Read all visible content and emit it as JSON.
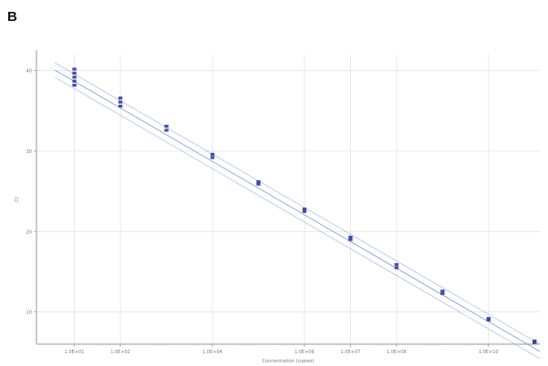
{
  "panel_label": "B",
  "chart_data": {
    "type": "scatter",
    "title": "",
    "xlabel": "Concentration (copies)",
    "ylabel": "Ct",
    "xscale": "log",
    "xlim": [
      1.5,
      130000000000.0
    ],
    "ylim": [
      6,
      42
    ],
    "x_ticks": [
      10,
      100,
      10000,
      1000000,
      10000000,
      100000000,
      10000000000
    ],
    "x_tick_labels": [
      "1.0E+01",
      "1.0E+02",
      "1.0E+04",
      "1.0E+06",
      "1.0E+07",
      "1.0E+08",
      "1.0E+10"
    ],
    "y_ticks": [
      10,
      20,
      30,
      40
    ],
    "y_tick_labels": [
      "10",
      "20",
      "30",
      "40"
    ],
    "grid": true,
    "legend": "none",
    "point_color": "#2e3e9e",
    "line_color": "#8fa2d8",
    "standard_curve": {
      "slope": -3.32,
      "intercept": 42.0
    },
    "confidence_band_offset": 0.9,
    "points": [
      {
        "x": 10,
        "y": 40.2
      },
      {
        "x": 10,
        "y": 39.7
      },
      {
        "x": 10,
        "y": 39.2
      },
      {
        "x": 10,
        "y": 38.7
      },
      {
        "x": 10,
        "y": 38.2
      },
      {
        "x": 100,
        "y": 36.6
      },
      {
        "x": 100,
        "y": 36.1
      },
      {
        "x": 100,
        "y": 35.6
      },
      {
        "x": 1000,
        "y": 33.1
      },
      {
        "x": 1000,
        "y": 32.6
      },
      {
        "x": 10000,
        "y": 29.6
      },
      {
        "x": 10000,
        "y": 29.2
      },
      {
        "x": 100000,
        "y": 26.2
      },
      {
        "x": 100000,
        "y": 25.9
      },
      {
        "x": 1000000,
        "y": 22.8
      },
      {
        "x": 1000000,
        "y": 22.5
      },
      {
        "x": 10000000,
        "y": 19.3
      },
      {
        "x": 10000000,
        "y": 19.0
      },
      {
        "x": 100000000,
        "y": 15.9
      },
      {
        "x": 100000000,
        "y": 15.5
      },
      {
        "x": 1000000000,
        "y": 12.6
      },
      {
        "x": 1000000000,
        "y": 12.3
      },
      {
        "x": 10000000000,
        "y": 9.2
      },
      {
        "x": 10000000000,
        "y": 9.0
      },
      {
        "x": 100000000000,
        "y": 6.4
      },
      {
        "x": 100000000000,
        "y": 6.2
      }
    ]
  }
}
